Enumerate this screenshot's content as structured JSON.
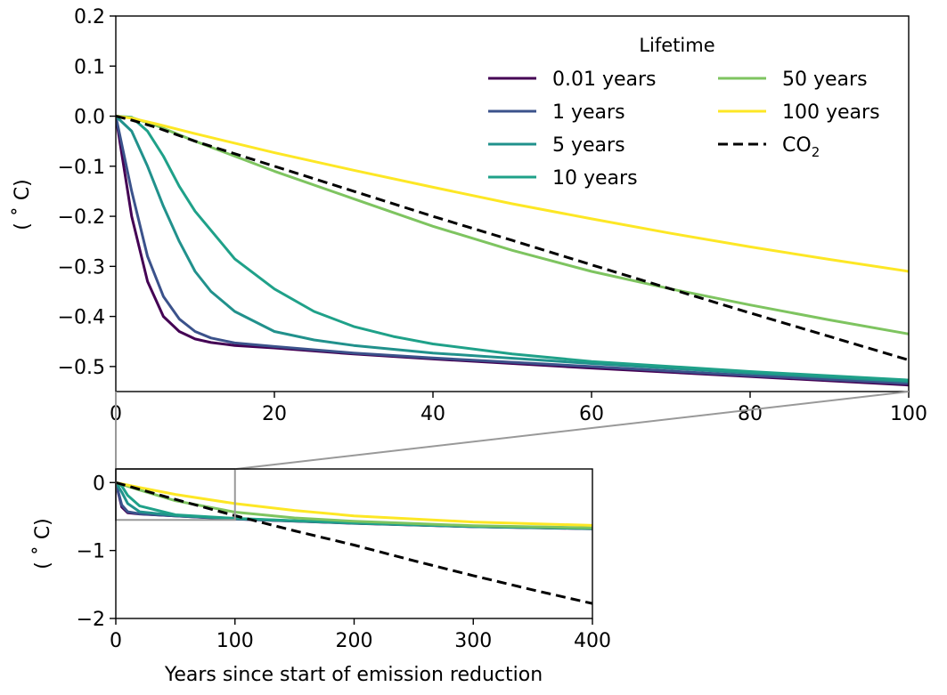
{
  "chart_data": [
    {
      "type": "line",
      "ylabel": "( ˚ C)",
      "xlabel": "",
      "xlim": [
        0,
        100
      ],
      "ylim": [
        -0.55,
        0.2
      ],
      "xticks": [
        0,
        20,
        40,
        60,
        80,
        100
      ],
      "xtick_labels": [
        "0",
        "20",
        "40",
        "60",
        "80",
        "100"
      ],
      "yticks": [
        0.2,
        0.1,
        0.0,
        -0.1,
        -0.2,
        -0.3,
        -0.4,
        -0.5
      ],
      "ytick_labels": [
        "0.2",
        "0.1",
        "0.0",
        "−0.1",
        "−0.2",
        "−0.3",
        "−0.4",
        "−0.5"
      ],
      "grid": false,
      "legend": {
        "title": "Lifetime",
        "placement": "top-right",
        "columns": 2,
        "entries": [
          "0.01 years",
          "1 years",
          "5 years",
          "10 years",
          "50 years",
          "100 years",
          "CO2"
        ]
      },
      "series": [
        {
          "name": "0.01 years",
          "color": "#440154",
          "dash": "solid",
          "x": [
            0,
            2,
            4,
            6,
            8,
            10,
            12,
            15,
            20,
            30,
            40,
            60,
            80,
            100
          ],
          "y": [
            0.0,
            -0.2,
            -0.33,
            -0.4,
            -0.43,
            -0.445,
            -0.452,
            -0.458,
            -0.463,
            -0.475,
            -0.485,
            -0.503,
            -0.52,
            -0.537
          ]
        },
        {
          "name": "1 years",
          "color": "#3b528b",
          "dash": "solid",
          "x": [
            0,
            2,
            4,
            6,
            8,
            10,
            12,
            15,
            20,
            30,
            40,
            60,
            80,
            100
          ],
          "y": [
            0.0,
            -0.15,
            -0.28,
            -0.36,
            -0.405,
            -0.43,
            -0.443,
            -0.453,
            -0.46,
            -0.473,
            -0.483,
            -0.5,
            -0.518,
            -0.534
          ]
        },
        {
          "name": "5 years",
          "color": "#21918c",
          "dash": "solid",
          "x": [
            0,
            2,
            4,
            6,
            8,
            10,
            12,
            15,
            20,
            25,
            30,
            40,
            60,
            80,
            100
          ],
          "y": [
            0.0,
            -0.03,
            -0.1,
            -0.18,
            -0.25,
            -0.31,
            -0.35,
            -0.39,
            -0.43,
            -0.447,
            -0.458,
            -0.473,
            -0.494,
            -0.513,
            -0.53
          ]
        },
        {
          "name": "10 years",
          "color": "#1fa189",
          "dash": "solid",
          "x": [
            0,
            2,
            4,
            6,
            8,
            10,
            15,
            20,
            25,
            30,
            35,
            40,
            50,
            60,
            80,
            100
          ],
          "y": [
            0.0,
            -0.002,
            -0.03,
            -0.08,
            -0.14,
            -0.19,
            -0.285,
            -0.345,
            -0.39,
            -0.42,
            -0.44,
            -0.455,
            -0.475,
            -0.49,
            -0.51,
            -0.527
          ]
        },
        {
          "name": "50 years",
          "color": "#7ec460",
          "dash": "solid",
          "x": [
            0,
            2,
            5,
            10,
            20,
            30,
            40,
            50,
            60,
            70,
            80,
            90,
            100
          ],
          "y": [
            0.0,
            -0.003,
            -0.018,
            -0.05,
            -0.11,
            -0.165,
            -0.22,
            -0.268,
            -0.31,
            -0.345,
            -0.377,
            -0.407,
            -0.435
          ]
        },
        {
          "name": "100 years",
          "color": "#fde725",
          "dash": "solid",
          "x": [
            0,
            2,
            5,
            10,
            20,
            30,
            40,
            50,
            60,
            70,
            80,
            90,
            100
          ],
          "y": [
            0.0,
            -0.004,
            -0.015,
            -0.035,
            -0.073,
            -0.108,
            -0.142,
            -0.175,
            -0.205,
            -0.234,
            -0.261,
            -0.286,
            -0.31
          ]
        },
        {
          "name": "CO2",
          "color": "#000000",
          "dash": "dashed",
          "x": [
            0,
            2,
            5,
            10,
            20,
            30,
            40,
            50,
            60,
            70,
            80,
            90,
            100
          ],
          "y": [
            0.0,
            -0.008,
            -0.022,
            -0.05,
            -0.1,
            -0.15,
            -0.2,
            -0.248,
            -0.297,
            -0.345,
            -0.393,
            -0.44,
            -0.487
          ]
        }
      ]
    },
    {
      "type": "line",
      "xlabel": "Years since start of emission reduction",
      "ylabel": "( ˚ C)",
      "xlim": [
        0,
        400
      ],
      "ylim": [
        -2,
        0.2
      ],
      "xticks": [
        0,
        100,
        200,
        300,
        400
      ],
      "xtick_labels": [
        "0",
        "100",
        "200",
        "300",
        "400"
      ],
      "yticks": [
        0,
        -1,
        -2
      ],
      "ytick_labels": [
        "0",
        "−1",
        "−2"
      ],
      "grid": false,
      "inset_box": {
        "x": [
          0,
          100
        ],
        "y": [
          -0.55,
          0.2
        ]
      },
      "series": [
        {
          "name": "0.01 years",
          "color": "#440154",
          "x": [
            0,
            5,
            10,
            20,
            50,
            100,
            200,
            300,
            400
          ],
          "y": [
            0.0,
            -0.36,
            -0.445,
            -0.463,
            -0.49,
            -0.537,
            -0.6,
            -0.65,
            -0.68
          ]
        },
        {
          "name": "1 years",
          "color": "#3b528b",
          "x": [
            0,
            5,
            10,
            20,
            50,
            100,
            200,
            300,
            400
          ],
          "y": [
            0.0,
            -0.33,
            -0.43,
            -0.46,
            -0.49,
            -0.534,
            -0.598,
            -0.648,
            -0.678
          ]
        },
        {
          "name": "5 years",
          "color": "#21918c",
          "x": [
            0,
            5,
            10,
            20,
            50,
            100,
            200,
            300,
            400
          ],
          "y": [
            0.0,
            -0.14,
            -0.31,
            -0.43,
            -0.485,
            -0.53,
            -0.597,
            -0.647,
            -0.677
          ]
        },
        {
          "name": "10 years",
          "color": "#1fa189",
          "x": [
            0,
            5,
            10,
            20,
            50,
            100,
            200,
            300,
            400
          ],
          "y": [
            0.0,
            -0.05,
            -0.19,
            -0.345,
            -0.475,
            -0.527,
            -0.595,
            -0.645,
            -0.675
          ]
        },
        {
          "name": "50 years",
          "color": "#7ec460",
          "x": [
            0,
            20,
            50,
            100,
            150,
            200,
            300,
            400
          ],
          "y": [
            0.0,
            -0.11,
            -0.268,
            -0.435,
            -0.52,
            -0.57,
            -0.635,
            -0.665
          ]
        },
        {
          "name": "100 years",
          "color": "#fde725",
          "x": [
            0,
            20,
            50,
            100,
            150,
            200,
            300,
            400
          ],
          "y": [
            0.0,
            -0.073,
            -0.175,
            -0.31,
            -0.41,
            -0.49,
            -0.58,
            -0.63
          ]
        },
        {
          "name": "CO2",
          "color": "#000000",
          "dash": "dashed",
          "x": [
            0,
            50,
            100,
            150,
            200,
            250,
            300,
            350,
            400
          ],
          "y": [
            0.0,
            -0.248,
            -0.487,
            -0.71,
            -0.92,
            -1.15,
            -1.37,
            -1.58,
            -1.78
          ]
        }
      ]
    }
  ]
}
